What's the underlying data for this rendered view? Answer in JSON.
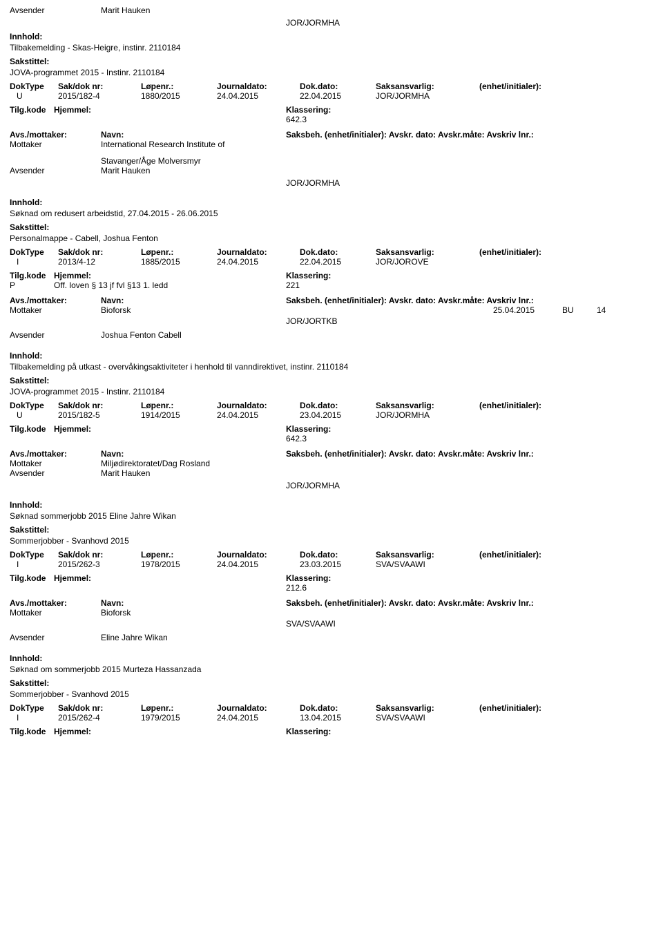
{
  "labels": {
    "avsender": "Avsender",
    "innhold": "Innhold:",
    "sakstittel": "Sakstittel:",
    "doktype": "DokType",
    "sakdok": "Sak/dok nr:",
    "lopenr": "Løpenr.:",
    "journaldato": "Journaldato:",
    "dokdato": "Dok.dato:",
    "saksansvarlig": "Saksansvarlig:",
    "enhet": "(enhet/initialer):",
    "tilgkode": "Tilg.kode",
    "hjemmel": "Hjemmel:",
    "klassering": "Klassering:",
    "avsmottaker": "Avs./mottaker:",
    "navn": "Navn:",
    "saksbeh": "Saksbeh. (enhet/initialer):",
    "avskrdato": "Avskr. dato:",
    "avskrmate": "Avskr.måte:",
    "avskrivlnr": "Avskriv lnr.:",
    "mottaker": "Mottaker"
  },
  "entries": [
    {
      "avsender_top": "Marit Hauken",
      "unit_top": "JOR/JORMHA",
      "innhold": "Tilbakemelding - Skas-Heigre, instinr. 2110184",
      "sakstittel": "JOVA-programmet 2015 - Instinr. 2110184",
      "doktype": "U",
      "sakdok": "2015/182-4",
      "lopenr": "1880/2015",
      "jdato": "24.04.2015",
      "ddato": "22.04.2015",
      "ansv": "JOR/JORMHA",
      "tilg_code": "",
      "tilg_hjemmel": "",
      "klassering": "642.3",
      "mottaker_navn": "International Research Institute of",
      "saksbeh_unit": "",
      "avskr_dato": "",
      "avskr_mate": "",
      "avskr_lnr": "",
      "extra_name": "Stavanger/Åge Molversmyr",
      "avsender_bottom": "Marit Hauken",
      "unit_bottom": "JOR/JORMHA"
    },
    {
      "avsender_top": "",
      "unit_top": "",
      "innhold": "Søknad om redusert arbeidstid, 27.04.2015 - 26.06.2015",
      "sakstittel": "Personalmappe - Cabell, Joshua Fenton",
      "doktype": "I",
      "sakdok": "2013/4-12",
      "lopenr": "1885/2015",
      "jdato": "24.04.2015",
      "ddato": "22.04.2015",
      "ansv": "JOR/JOROVE",
      "tilg_code": "P",
      "tilg_hjemmel": "Off. loven § 13 jf fvl §13 1. ledd",
      "klassering": "221",
      "mottaker_navn": "Bioforsk",
      "saksbeh_unit": "JOR/JORTKB",
      "avskr_dato": "25.04.2015",
      "avskr_mate": "BU",
      "avskr_lnr": "14",
      "extra_name": "",
      "avsender_bottom": "Joshua Fenton Cabell",
      "unit_bottom": ""
    },
    {
      "avsender_top": "",
      "unit_top": "",
      "innhold": "Tilbakemelding på utkast - overvåkingsaktiviteter i henhold til vanndirektivet, instinr. 2110184",
      "sakstittel": "JOVA-programmet 2015 - Instinr. 2110184",
      "doktype": "U",
      "sakdok": "2015/182-5",
      "lopenr": "1914/2015",
      "jdato": "24.04.2015",
      "ddato": "23.04.2015",
      "ansv": "JOR/JORMHA",
      "tilg_code": "",
      "tilg_hjemmel": "",
      "klassering": "642.3",
      "mottaker_navn": "Miljødirektoratet/Dag Rosland",
      "saksbeh_unit": "",
      "avskr_dato": "",
      "avskr_mate": "",
      "avskr_lnr": "",
      "extra_name": "",
      "avsender_bottom": "Marit Hauken",
      "unit_bottom": "JOR/JORMHA"
    },
    {
      "avsender_top": "",
      "unit_top": "",
      "innhold": "Søknad sommerjobb 2015 Eline Jahre Wikan",
      "sakstittel": "Sommerjobber - Svanhovd 2015",
      "doktype": "I",
      "sakdok": "2015/262-3",
      "lopenr": "1978/2015",
      "jdato": "24.04.2015",
      "ddato": "23.03.2015",
      "ansv": "SVA/SVAAWI",
      "tilg_code": "",
      "tilg_hjemmel": "",
      "klassering": "212.6",
      "mottaker_navn": "Bioforsk",
      "saksbeh_unit": "SVA/SVAAWI",
      "avskr_dato": "",
      "avskr_mate": "",
      "avskr_lnr": "",
      "extra_name": "",
      "avsender_bottom": "Eline Jahre Wikan",
      "unit_bottom": ""
    },
    {
      "avsender_top": "",
      "unit_top": "",
      "innhold": "Søknad om sommerjobb 2015 Murteza Hassanzada",
      "sakstittel": "Sommerjobber - Svanhovd 2015",
      "doktype": "I",
      "sakdok": "2015/262-4",
      "lopenr": "1979/2015",
      "jdato": "24.04.2015",
      "ddato": "13.04.2015",
      "ansv": "SVA/SVAAWI",
      "tilg_code": "",
      "tilg_hjemmel": "",
      "klassering": "",
      "mottaker_navn": "",
      "saksbeh_unit": "",
      "avskr_dato": "",
      "avskr_mate": "",
      "avskr_lnr": "",
      "extra_name": "",
      "avsender_bottom": "",
      "unit_bottom": "",
      "truncated": true
    }
  ]
}
